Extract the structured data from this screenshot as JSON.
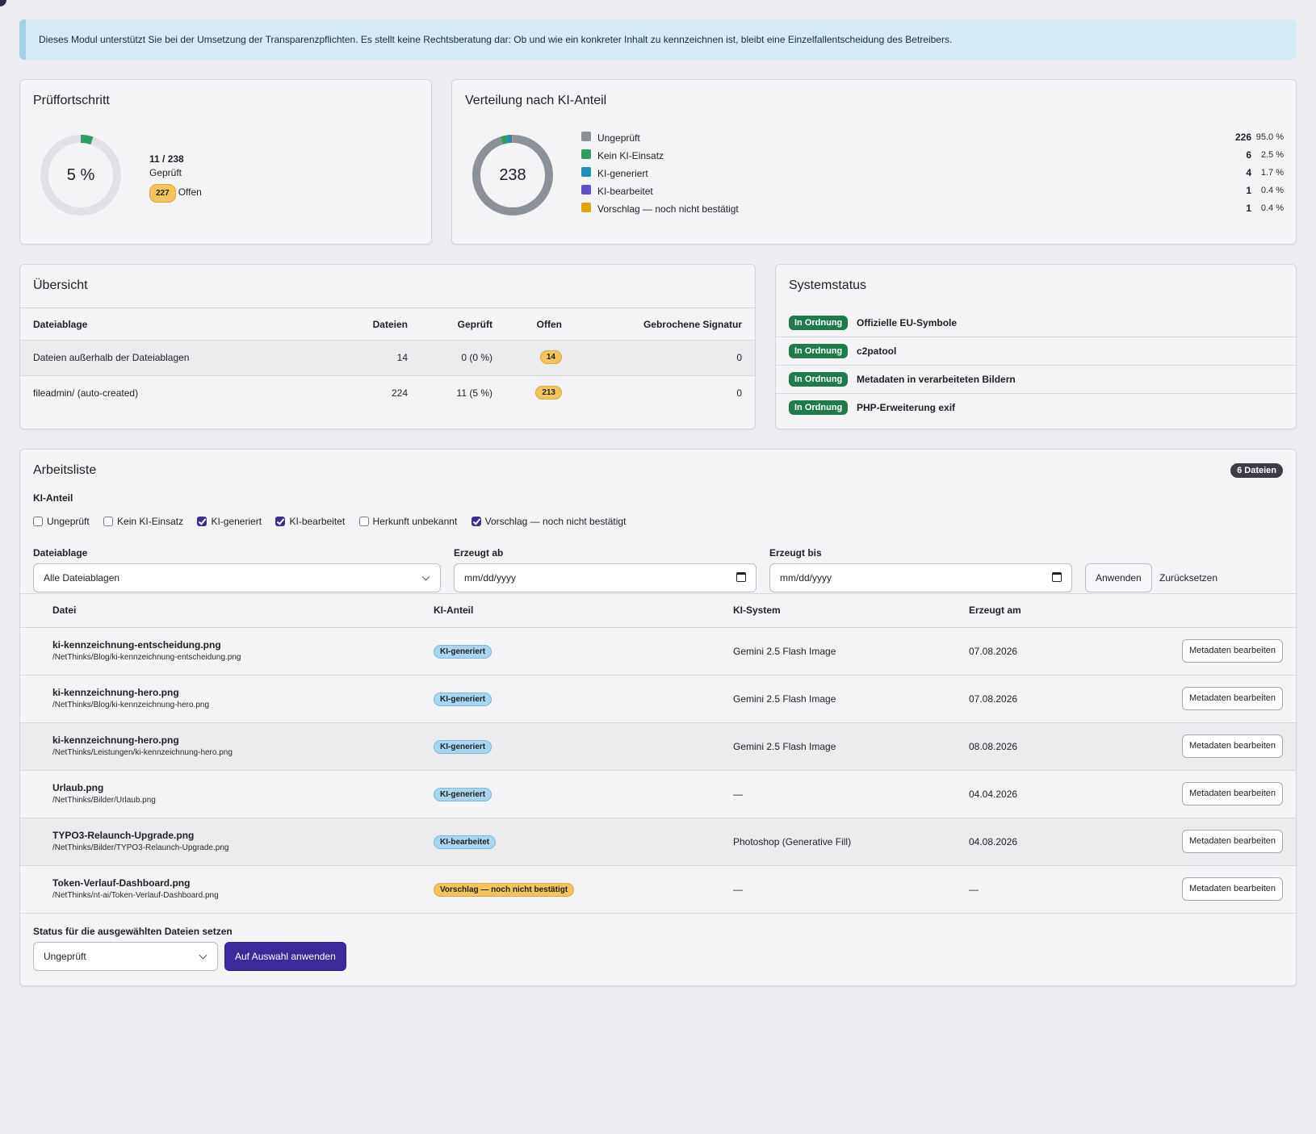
{
  "alert": {
    "text": "Dieses Modul unterstützt Sie bei der Umsetzung der Transparenzpflichten. Es stellt keine Rechtsberatung dar: Ob und wie ein konkreter Inhalt zu kennzeichnen ist, bleibt eine Einzelfallentscheidung des Betreibers."
  },
  "progress": {
    "title": "Prüffortschritt",
    "percent_label": "5 %",
    "fraction": 0.05,
    "count": "11 / 238",
    "checked_label": "Geprüft",
    "open_count": "227",
    "open_label": "Offen",
    "colors": {
      "fill": "#2e9e62",
      "track": "#dfe1e5"
    }
  },
  "distribution": {
    "title": "Verteilung nach KI-Anteil",
    "total": "238",
    "items": [
      {
        "label": "Ungeprüft",
        "count": "226",
        "pct": "95.0 %",
        "value": 226,
        "color": "#8c9199"
      },
      {
        "label": "Kein KI-Einsatz",
        "count": "6",
        "pct": "2.5 %",
        "value": 6,
        "color": "#2e9e62"
      },
      {
        "label": "KI-generiert",
        "count": "4",
        "pct": "1.7 %",
        "value": 4,
        "color": "#1f8fb5"
      },
      {
        "label": "KI-bearbeitet",
        "count": "1",
        "pct": "0.4 %",
        "value": 1,
        "color": "#5b4fcf"
      },
      {
        "label": "Vorschlag — noch nicht bestätigt",
        "count": "1",
        "pct": "0.4 %",
        "value": 1,
        "color": "#e0a300"
      }
    ]
  },
  "overview": {
    "title": "Übersicht",
    "headers": [
      "Dateiablage",
      "Dateien",
      "Geprüft",
      "Offen",
      "Gebrochene Signatur"
    ],
    "rows": [
      {
        "storage": "Dateien außerhalb der Dateiablagen",
        "files": "14",
        "checked": "0 (0 %)",
        "open": "14",
        "broken": "0"
      },
      {
        "storage": "fileadmin/ (auto-created)",
        "files": "224",
        "checked": "11 (5 %)",
        "open": "213",
        "broken": "0"
      }
    ]
  },
  "status": {
    "title": "Systemstatus",
    "items": [
      {
        "badge": "In Ordnung",
        "label": "Offizielle EU-Symbole"
      },
      {
        "badge": "In Ordnung",
        "label": "c2patool"
      },
      {
        "badge": "In Ordnung",
        "label": "Metadaten in verarbeiteten Bildern"
      },
      {
        "badge": "In Ordnung",
        "label": "PHP-Erweiterung exif"
      }
    ]
  },
  "worklist": {
    "title": "Arbeitsliste",
    "count_badge": "6 Dateien",
    "filter_label": "KI-Anteil",
    "checkboxes": [
      {
        "label": "Ungeprüft",
        "checked": false
      },
      {
        "label": "Kein KI-Einsatz",
        "checked": false
      },
      {
        "label": "KI-generiert",
        "checked": true
      },
      {
        "label": "KI-bearbeitet",
        "checked": true
      },
      {
        "label": "Herkunft unbekannt",
        "checked": false
      },
      {
        "label": "Vorschlag — noch nicht bestätigt",
        "checked": true
      }
    ],
    "storage_label": "Dateiablage",
    "storage_value": "Alle Dateiablagen",
    "from_label": "Erzeugt ab",
    "from_placeholder": "mm/dd/yyyy",
    "to_label": "Erzeugt bis",
    "to_placeholder": "mm/dd/yyyy",
    "apply_label": "Anwenden",
    "reset_label": "Zurücksetzen",
    "headers": [
      "Datei",
      "KI-Anteil",
      "KI-System",
      "Erzeugt am"
    ],
    "rows": [
      {
        "name": "ki-kennzeichnung-entscheidung.png",
        "path": "/NetThinks/Blog/ki-kennzeichnung-entscheidung.png",
        "ai": "KI-generiert",
        "ai_kind": "blue",
        "system": "Gemini 2.5 Flash Image",
        "date": "07.08.2026",
        "action": "Metadaten bearbeiten"
      },
      {
        "name": "ki-kennzeichnung-hero.png",
        "path": "/NetThinks/Blog/ki-kennzeichnung-hero.png",
        "ai": "KI-generiert",
        "ai_kind": "blue",
        "system": "Gemini 2.5 Flash Image",
        "date": "07.08.2026",
        "action": "Metadaten bearbeiten"
      },
      {
        "name": "ki-kennzeichnung-hero.png",
        "path": "/NetThinks/Leistungen/ki-kennzeichnung-hero.png",
        "ai": "KI-generiert",
        "ai_kind": "blue",
        "system": "Gemini 2.5 Flash Image",
        "date": "08.08.2026",
        "action": "Metadaten bearbeiten"
      },
      {
        "name": "Urlaub.png",
        "path": "/NetThinks/Bilder/Urlaub.png",
        "ai": "KI-generiert",
        "ai_kind": "blue",
        "system": "—",
        "date": "04.04.2026",
        "action": "Metadaten bearbeiten"
      },
      {
        "name": "TYPO3-Relaunch-Upgrade.png",
        "path": "/NetThinks/Bilder/TYPO3-Relaunch-Upgrade.png",
        "ai": "KI-bearbeitet",
        "ai_kind": "blue",
        "system": "Photoshop (Generative Fill)",
        "date": "04.08.2026",
        "action": "Metadaten bearbeiten"
      },
      {
        "name": "Token-Verlauf-Dashboard.png",
        "path": "/NetThinks/nt-ai/Token-Verlauf-Dashboard.png",
        "ai": "Vorschlag — noch nicht bestätigt",
        "ai_kind": "yellow",
        "system": "—",
        "date": "—",
        "action": "Metadaten bearbeiten"
      }
    ],
    "bulk_label": "Status für die ausgewählten Dateien setzen",
    "bulk_value": "Ungeprüft",
    "bulk_apply": "Auf Auswahl anwenden"
  }
}
